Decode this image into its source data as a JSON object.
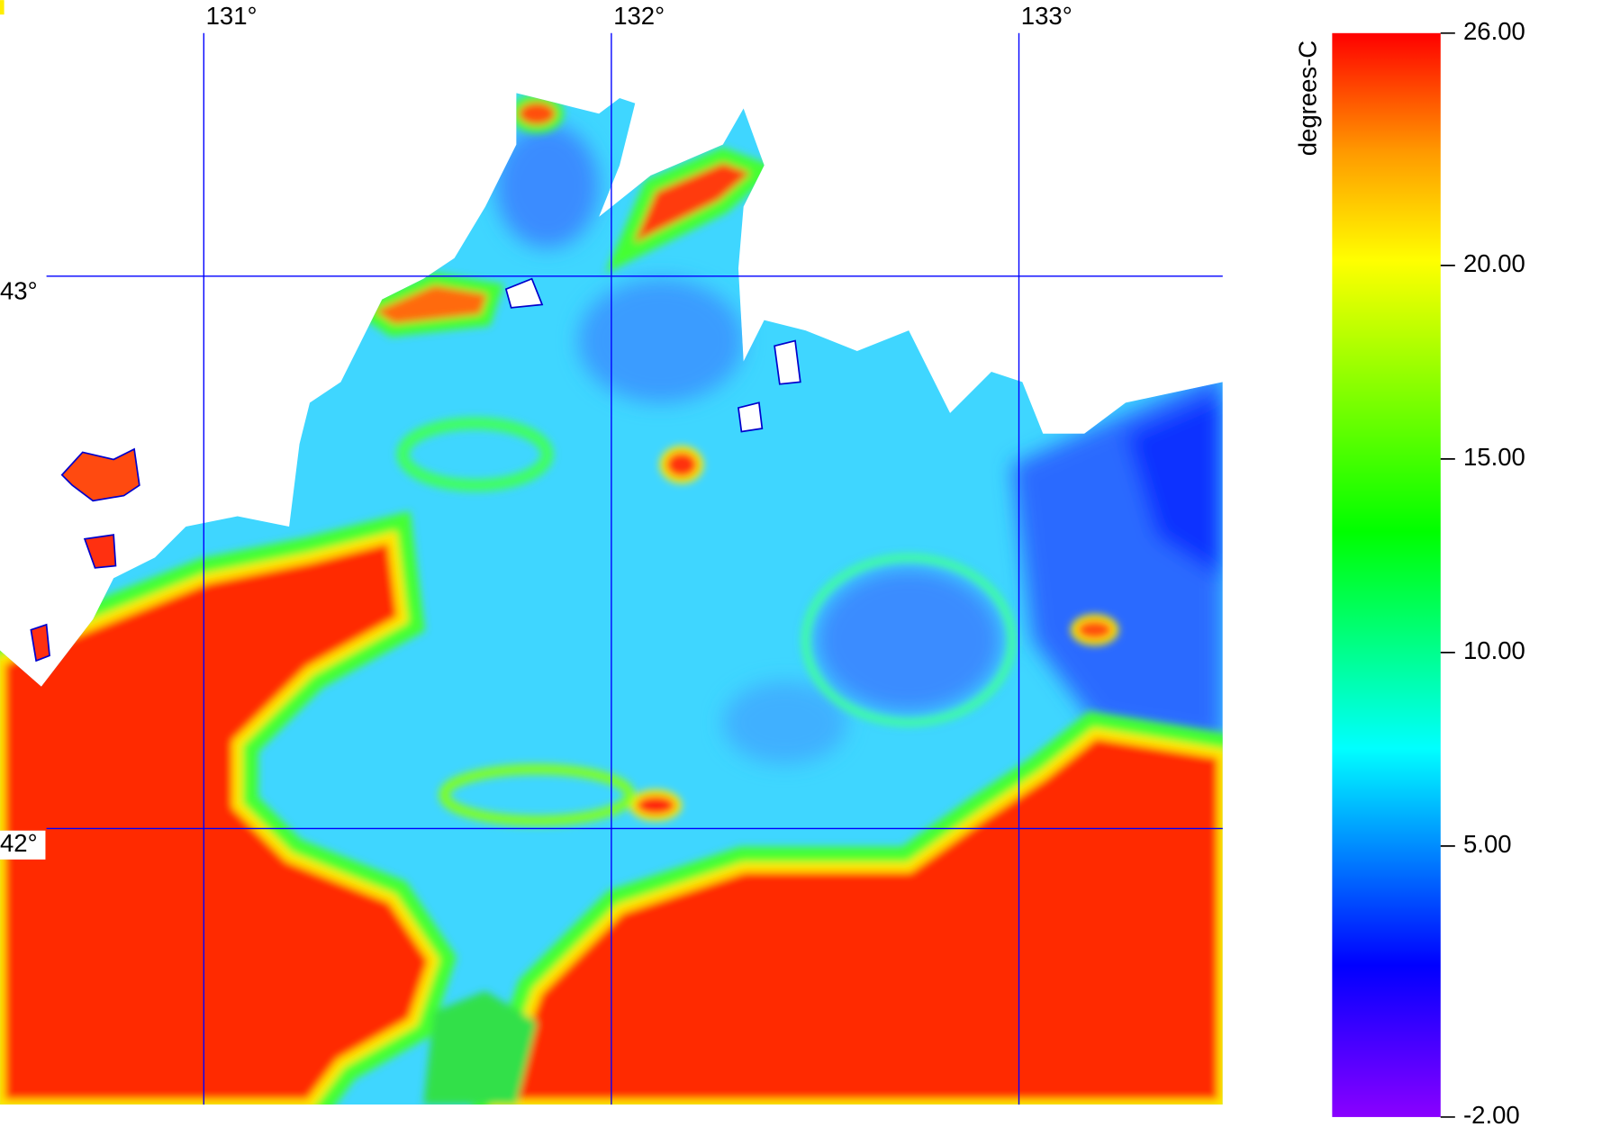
{
  "chart_data": {
    "type": "map",
    "xlim": [
      130.5,
      133.5
    ],
    "xticks": [
      {
        "value": 131,
        "label": "131°"
      },
      {
        "value": 132,
        "label": "132°"
      },
      {
        "value": 133,
        "label": "133°"
      }
    ],
    "ylim": [
      41.5,
      43.5
    ],
    "yticks": [
      {
        "value": 42,
        "label": "42°"
      },
      {
        "value": 43,
        "label": "43°"
      }
    ],
    "grid": true,
    "grid_color": "#0000ff",
    "colorbar": {
      "label": "degrees-C",
      "lim": [
        -2,
        26
      ],
      "ticks": [
        {
          "value": 26,
          "label": "26.00"
        },
        {
          "value": 20,
          "label": "20.00"
        },
        {
          "value": 15,
          "label": "15.00"
        },
        {
          "value": 10,
          "label": "10.00"
        },
        {
          "value": 5,
          "label": "5.00"
        },
        {
          "value": -2,
          "label": "-2.00"
        }
      ]
    }
  }
}
